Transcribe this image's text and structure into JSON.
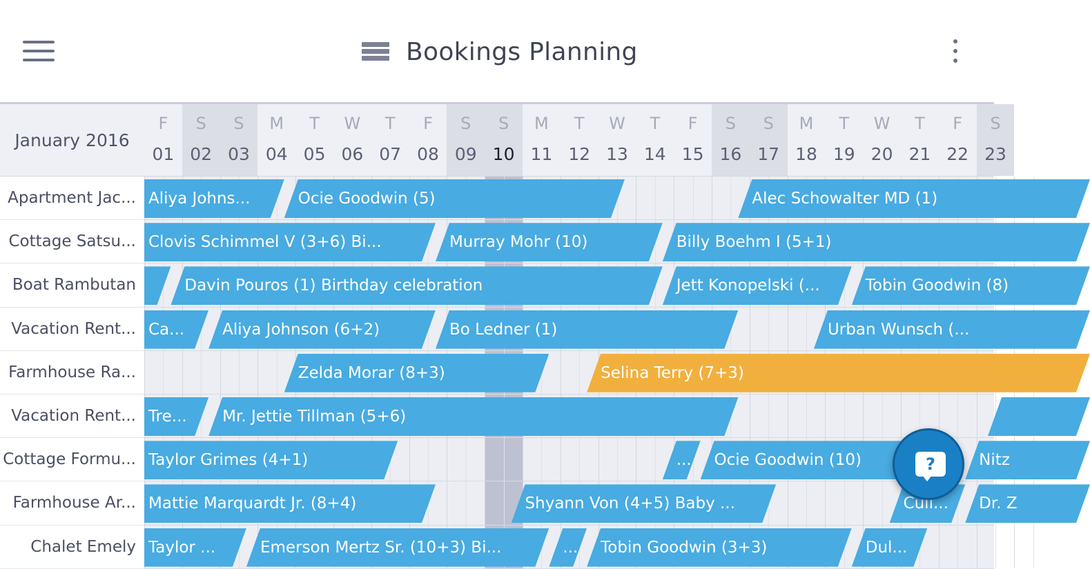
{
  "header": {
    "title": "Bookings Planning",
    "menu_icon": "hamburger-menu-icon",
    "title_icon": "planning-list-icon",
    "more_icon": "more-vertical-icon"
  },
  "calendar": {
    "month_label": "January 2016",
    "today": "10",
    "days": [
      {
        "dow": "F",
        "num": "01",
        "weekend": false
      },
      {
        "dow": "S",
        "num": "02",
        "weekend": true
      },
      {
        "dow": "S",
        "num": "03",
        "weekend": true
      },
      {
        "dow": "M",
        "num": "04",
        "weekend": false
      },
      {
        "dow": "T",
        "num": "05",
        "weekend": false
      },
      {
        "dow": "W",
        "num": "06",
        "weekend": false
      },
      {
        "dow": "T",
        "num": "07",
        "weekend": false
      },
      {
        "dow": "F",
        "num": "08",
        "weekend": false
      },
      {
        "dow": "S",
        "num": "09",
        "weekend": true
      },
      {
        "dow": "S",
        "num": "10",
        "weekend": true
      },
      {
        "dow": "M",
        "num": "11",
        "weekend": false
      },
      {
        "dow": "T",
        "num": "12",
        "weekend": false
      },
      {
        "dow": "W",
        "num": "13",
        "weekend": false
      },
      {
        "dow": "T",
        "num": "14",
        "weekend": false
      },
      {
        "dow": "F",
        "num": "15",
        "weekend": false
      },
      {
        "dow": "S",
        "num": "16",
        "weekend": true
      },
      {
        "dow": "S",
        "num": "17",
        "weekend": true
      },
      {
        "dow": "M",
        "num": "18",
        "weekend": false
      },
      {
        "dow": "T",
        "num": "19",
        "weekend": false
      },
      {
        "dow": "W",
        "num": "20",
        "weekend": false
      },
      {
        "dow": "T",
        "num": "21",
        "weekend": false
      },
      {
        "dow": "F",
        "num": "22",
        "weekend": false
      },
      {
        "dow": "S",
        "num": "23",
        "weekend": true
      }
    ]
  },
  "rentals": [
    {
      "name": "Apartment Jac...",
      "bookings": [
        {
          "label": "Aliya Johns...",
          "start": 0,
          "end": 3.7,
          "status": "confirmed"
        },
        {
          "label": "Ocie Goodwin (5)",
          "start": 3.7,
          "end": 12.7,
          "status": "confirmed"
        },
        {
          "label": "Alec Schowalter MD (1)",
          "start": 15.7,
          "end": 25,
          "status": "confirmed"
        }
      ]
    },
    {
      "name": "Cottage Satsu...",
      "bookings": [
        {
          "label": "Clovis Schimmel V (3+6) Bi...",
          "start": 0,
          "end": 7.7,
          "status": "confirmed"
        },
        {
          "label": "Murray Mohr (10)",
          "start": 7.7,
          "end": 13.7,
          "status": "confirmed"
        },
        {
          "label": "Billy Boehm I (5+1)",
          "start": 13.7,
          "end": 25,
          "status": "confirmed"
        }
      ]
    },
    {
      "name": "Boat Rambutan",
      "bookings": [
        {
          "label": "",
          "start": 0,
          "end": 0.7,
          "status": "confirmed"
        },
        {
          "label": "Davin Pouros (1) Birthday celebration",
          "start": 0.7,
          "end": 13.7,
          "status": "confirmed"
        },
        {
          "label": "Jett Konopelski (...",
          "start": 13.7,
          "end": 18.7,
          "status": "confirmed"
        },
        {
          "label": "Tobin Goodwin (8)",
          "start": 18.7,
          "end": 25,
          "status": "confirmed"
        }
      ]
    },
    {
      "name": "Vacation Rent...",
      "bookings": [
        {
          "label": "Ca...",
          "start": 0,
          "end": 1.7,
          "status": "confirmed"
        },
        {
          "label": "Aliya Johnson (6+2)",
          "start": 1.7,
          "end": 7.7,
          "status": "confirmed"
        },
        {
          "label": "Bo Ledner (1)",
          "start": 7.7,
          "end": 15.7,
          "status": "confirmed"
        },
        {
          "label": "Urban Wunsch (...",
          "start": 17.7,
          "end": 25,
          "status": "confirmed"
        }
      ]
    },
    {
      "name": "Farmhouse Ra...",
      "bookings": [
        {
          "label": "Zelda Morar (8+3)",
          "start": 3.7,
          "end": 10.7,
          "status": "confirmed"
        },
        {
          "label": "Selina Terry (7+3)",
          "start": 11.7,
          "end": 25,
          "status": "tentative"
        }
      ]
    },
    {
      "name": "Vacation Rent...",
      "bookings": [
        {
          "label": "Tre...",
          "start": 0,
          "end": 1.7,
          "status": "confirmed"
        },
        {
          "label": "Mr. Jettie Tillman (5+6)",
          "start": 1.7,
          "end": 15.7,
          "status": "confirmed"
        },
        {
          "label": "",
          "start": 22.3,
          "end": 25,
          "status": "confirmed"
        }
      ]
    },
    {
      "name": "Cottage Formu...",
      "bookings": [
        {
          "label": "Taylor Grimes (4+1)",
          "start": 0,
          "end": 6.7,
          "status": "confirmed"
        },
        {
          "label": "...",
          "start": 13.7,
          "end": 14.7,
          "status": "confirmed"
        },
        {
          "label": "Ocie Goodwin (10)",
          "start": 14.7,
          "end": 20.7,
          "status": "confirmed"
        },
        {
          "label": "Nitz",
          "start": 21.7,
          "end": 25,
          "status": "confirmed"
        }
      ]
    },
    {
      "name": "Farmhouse Ar...",
      "bookings": [
        {
          "label": "Mattie Marquardt Jr. (8+4)",
          "start": 0,
          "end": 7.7,
          "status": "confirmed"
        },
        {
          "label": "Shyann Von (4+5) Baby ...",
          "start": 9.7,
          "end": 16.7,
          "status": "confirmed"
        },
        {
          "label": "Cull...",
          "start": 19.7,
          "end": 21.7,
          "status": "confirmed"
        },
        {
          "label": "Dr. Z",
          "start": 21.7,
          "end": 25,
          "status": "confirmed"
        }
      ]
    },
    {
      "name": "Chalet Emely",
      "bookings": [
        {
          "label": "Taylor ...",
          "start": 0,
          "end": 2.7,
          "status": "confirmed"
        },
        {
          "label": "Emerson Mertz Sr. (10+3) Bi...",
          "start": 2.7,
          "end": 10.7,
          "status": "confirmed"
        },
        {
          "label": "...",
          "start": 10.7,
          "end": 11.7,
          "status": "confirmed"
        },
        {
          "label": "Tobin Goodwin (3+3)",
          "start": 11.7,
          "end": 18.7,
          "status": "confirmed"
        },
        {
          "label": "Dul...",
          "start": 18.7,
          "end": 20.7,
          "status": "confirmed"
        }
      ]
    }
  ],
  "colors": {
    "confirmed": "#48abe1",
    "tentative": "#f1b03e",
    "fab": "#1a80c5"
  },
  "help_button": {
    "icon": "help-chat-icon",
    "glyph": "?"
  }
}
